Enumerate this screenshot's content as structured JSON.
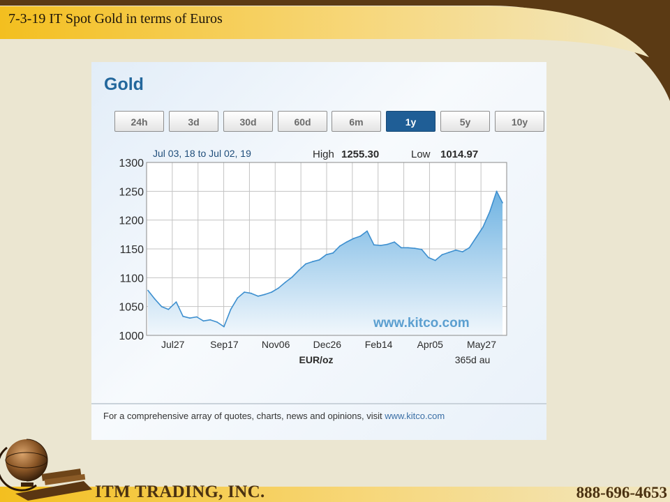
{
  "slide": {
    "title": "7-3-19 IT Spot Gold in terms of Euros",
    "company": "ITM TRADING, INC.",
    "phone": "888-696-4653"
  },
  "widget": {
    "title": "Gold",
    "tabs": [
      "24h",
      "3d",
      "30d",
      "60d",
      "6m",
      "1y",
      "5y",
      "10y"
    ],
    "active_tab": "1y",
    "date_range": "Jul 03, 18 to Jul 02, 19",
    "high_label": "High",
    "high_value": "1255.30",
    "low_label": "Low",
    "low_value": "1014.97",
    "watermark": "www.kitco.com",
    "footnote_text": "For a comprehensive array of quotes, charts, news and opinions, visit ",
    "footnote_link": "www.kitco.com"
  },
  "colors": {
    "accent": "#1f5e96",
    "line": "#3d8fcf",
    "watermark": "#5b9fd0",
    "grid": "#c3c3c3"
  },
  "chart_data": {
    "type": "area",
    "x_ticks": [
      "Jul27",
      "Sep17",
      "Nov06",
      "Dec26",
      "Feb14",
      "Apr05",
      "May27"
    ],
    "y_ticks": [
      1000,
      1050,
      1100,
      1150,
      1200,
      1250,
      1300
    ],
    "ylim": [
      1000,
      1300
    ],
    "xlabel": "EUR/oz",
    "x_note": "365d au",
    "grid": true,
    "series": [
      {
        "x": [
          "2018-07-03",
          "2018-07-10",
          "2018-07-17",
          "2018-07-24",
          "2018-08-01",
          "2018-08-08",
          "2018-08-15",
          "2018-08-22",
          "2018-08-29",
          "2018-09-05",
          "2018-09-12",
          "2018-09-19",
          "2018-09-26",
          "2018-10-03",
          "2018-10-10",
          "2018-10-17",
          "2018-10-24",
          "2018-10-31",
          "2018-11-07",
          "2018-11-14",
          "2018-11-21",
          "2018-11-28",
          "2018-12-05",
          "2018-12-12",
          "2018-12-19",
          "2018-12-26",
          "2019-01-02",
          "2019-01-09",
          "2019-01-16",
          "2019-01-23",
          "2019-01-30",
          "2019-02-06",
          "2019-02-13",
          "2019-02-20",
          "2019-02-27",
          "2019-03-06",
          "2019-03-13",
          "2019-03-20",
          "2019-03-27",
          "2019-04-03",
          "2019-04-10",
          "2019-04-17",
          "2019-04-24",
          "2019-05-01",
          "2019-05-08",
          "2019-05-15",
          "2019-05-22",
          "2019-05-29",
          "2019-06-05",
          "2019-06-12",
          "2019-06-19",
          "2019-06-26",
          "2019-07-02"
        ],
        "values": [
          1078,
          1063,
          1050,
          1045,
          1058,
          1033,
          1030,
          1032,
          1025,
          1027,
          1023,
          1015,
          1045,
          1065,
          1075,
          1073,
          1068,
          1071,
          1075,
          1082,
          1092,
          1101,
          1113,
          1124,
          1128,
          1131,
          1140,
          1143,
          1155,
          1162,
          1168,
          1172,
          1181,
          1157,
          1156,
          1158,
          1162,
          1152,
          1152,
          1151,
          1149,
          1135,
          1130,
          1140,
          1144,
          1148,
          1145,
          1152,
          1170,
          1188,
          1215,
          1250,
          1230
        ]
      }
    ]
  }
}
